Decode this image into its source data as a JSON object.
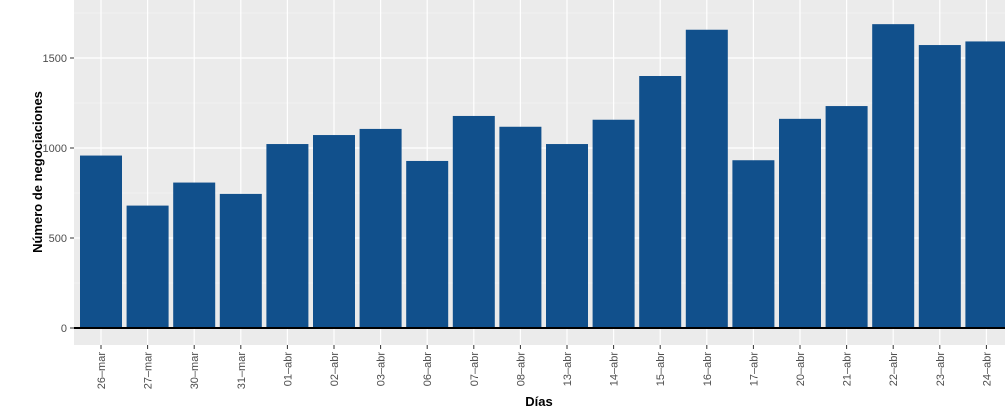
{
  "chart_data": {
    "type": "bar",
    "title": "",
    "xlabel": "Días",
    "ylabel": "Número de negociaciones",
    "categories": [
      "26–mar",
      "27–mar",
      "30–mar",
      "31–mar",
      "01–abr",
      "02–abr",
      "03–abr",
      "06–abr",
      "07–abr",
      "08–abr",
      "13–abr",
      "14–abr",
      "15–abr",
      "16–abr",
      "17–abr",
      "20–abr",
      "21–abr",
      "22–abr",
      "23–abr",
      "24–abr"
    ],
    "values": [
      958,
      680,
      808,
      745,
      1022,
      1072,
      1106,
      928,
      1178,
      1118,
      1022,
      1157,
      1400,
      1657,
      932,
      1162,
      1233,
      1688,
      1572,
      1592
    ],
    "yticks": [
      0,
      500,
      1000,
      1500
    ],
    "ylim": [
      0,
      1765
    ],
    "grid": true,
    "colors": {
      "bar": "#11508c",
      "panel": "#ebebeb",
      "grid_major": "#ffffff",
      "grid_minor": "#f5f5f5",
      "baseline": "#000000"
    }
  }
}
